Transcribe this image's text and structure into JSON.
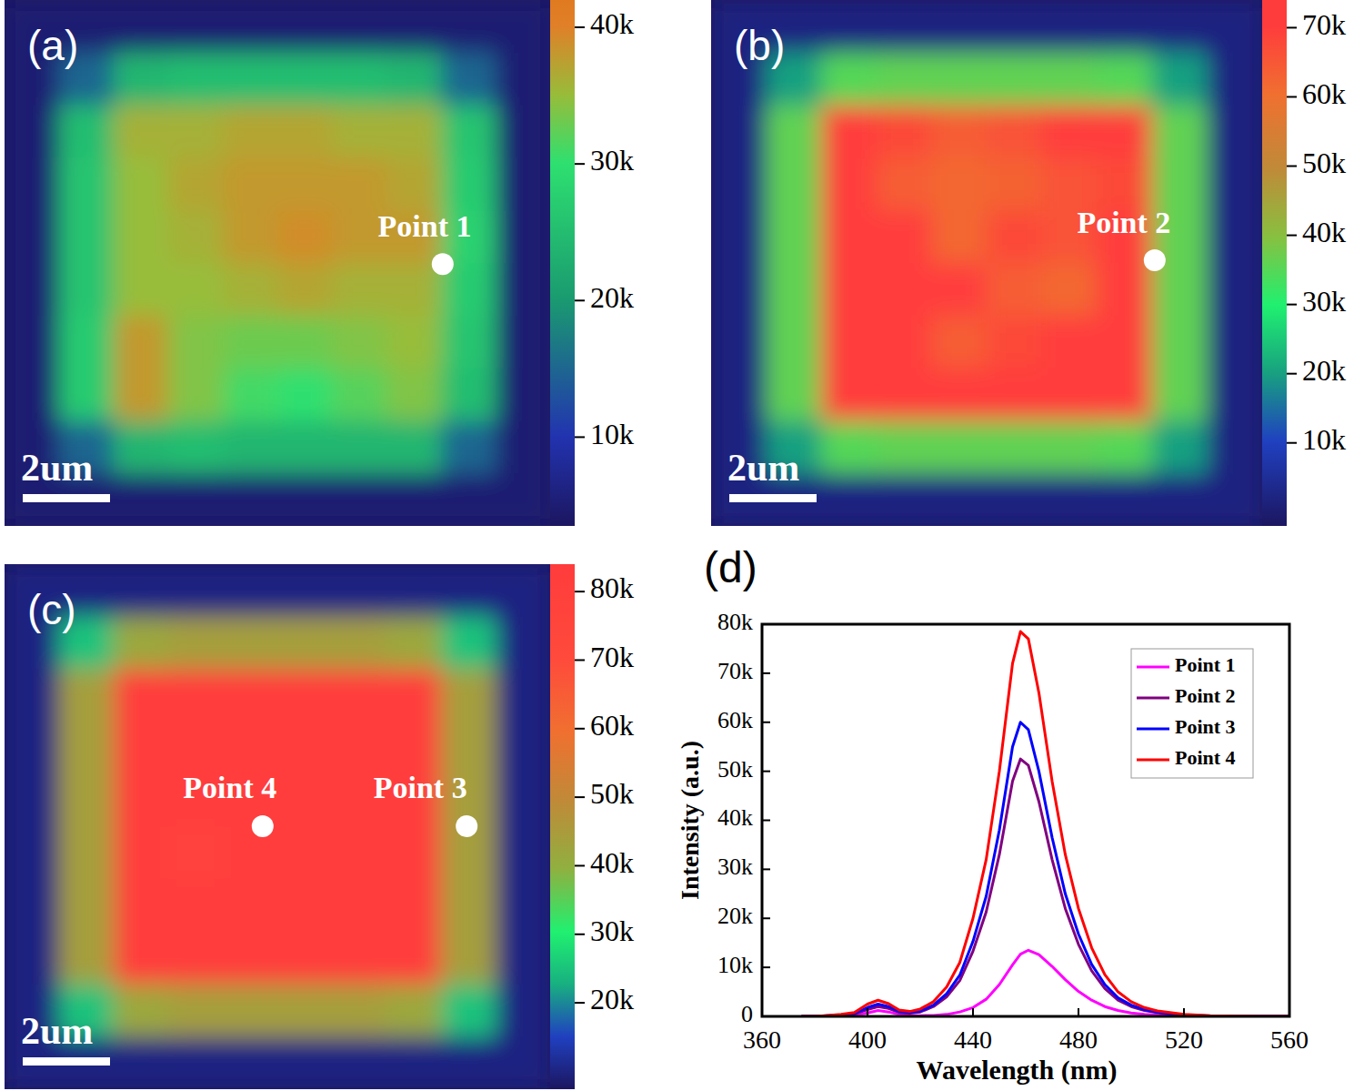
{
  "chart_data": [
    {
      "type": "heatmap",
      "label": "(a)",
      "scale_bar": "2um",
      "annotations": [
        "Point 1"
      ],
      "color_range": [
        3500,
        42000
      ],
      "color_ticks": [
        {
          "value": 10000,
          "label": "10k"
        },
        {
          "value": 20000,
          "label": "20k"
        },
        {
          "value": 30000,
          "label": "30k"
        },
        {
          "value": 40000,
          "label": "40k"
        }
      ],
      "cells": [
        [
          5000,
          5000,
          5000,
          5000,
          5000,
          5000,
          5000,
          5000,
          5000,
          5000
        ],
        [
          5000,
          15000,
          24000,
          25000,
          25000,
          25000,
          25000,
          24000,
          15000,
          5000
        ],
        [
          5000,
          25000,
          36000,
          36000,
          37000,
          37000,
          36000,
          36000,
          26000,
          5000
        ],
        [
          5000,
          26000,
          35000,
          37000,
          38000,
          38000,
          38000,
          37000,
          27000,
          5000
        ],
        [
          5000,
          26000,
          35000,
          36000,
          38000,
          39000,
          38000,
          38000,
          28000,
          5000
        ],
        [
          5000,
          26000,
          35000,
          35000,
          36000,
          37000,
          36000,
          36000,
          27000,
          5000
        ],
        [
          5000,
          27000,
          38000,
          34000,
          33000,
          33000,
          34000,
          35000,
          26000,
          5000
        ],
        [
          5000,
          27000,
          38000,
          34000,
          31000,
          30000,
          32000,
          34000,
          25000,
          5000
        ],
        [
          5000,
          15000,
          24000,
          25000,
          24000,
          24000,
          24000,
          24000,
          15000,
          5000
        ],
        [
          5000,
          5000,
          5000,
          5000,
          5000,
          5000,
          5000,
          5000,
          5000,
          5000
        ]
      ]
    },
    {
      "type": "heatmap",
      "label": "(b)",
      "scale_bar": "2um",
      "annotations": [
        "Point 2"
      ],
      "color_range": [
        -2000,
        74000
      ],
      "color_ticks": [
        {
          "value": 10000,
          "label": "10k"
        },
        {
          "value": 20000,
          "label": "20k"
        },
        {
          "value": 30000,
          "label": "30k"
        },
        {
          "value": 40000,
          "label": "40k"
        },
        {
          "value": 50000,
          "label": "50k"
        },
        {
          "value": 60000,
          "label": "60k"
        },
        {
          "value": 70000,
          "label": "70k"
        }
      ],
      "cells": [
        [
          2000,
          2000,
          2000,
          2000,
          2000,
          2000,
          2000,
          2000,
          2000,
          2000
        ],
        [
          2000,
          20000,
          35000,
          36000,
          36000,
          36000,
          36000,
          35000,
          20000,
          2000
        ],
        [
          2000,
          36000,
          72000,
          68000,
          64000,
          66000,
          70000,
          72000,
          36000,
          2000
        ],
        [
          2000,
          36000,
          72000,
          64000,
          62000,
          63000,
          66000,
          68000,
          36000,
          2000
        ],
        [
          2000,
          36000,
          72000,
          70000,
          62000,
          68000,
          66000,
          70000,
          36000,
          2000
        ],
        [
          2000,
          36000,
          72000,
          72000,
          70000,
          64000,
          62000,
          70000,
          36000,
          2000
        ],
        [
          2000,
          36000,
          72000,
          72000,
          64000,
          68000,
          70000,
          72000,
          36000,
          2000
        ],
        [
          2000,
          36000,
          72000,
          72000,
          70000,
          72000,
          72000,
          72000,
          36000,
          2000
        ],
        [
          2000,
          20000,
          35000,
          36000,
          36000,
          36000,
          36000,
          35000,
          20000,
          2000
        ],
        [
          2000,
          2000,
          2000,
          2000,
          2000,
          2000,
          2000,
          2000,
          2000,
          2000
        ]
      ]
    },
    {
      "type": "heatmap",
      "label": "(c)",
      "scale_bar": "2um",
      "annotations": [
        "Point 3",
        "Point 4"
      ],
      "color_range": [
        7400,
        84000
      ],
      "color_ticks": [
        {
          "value": 20000,
          "label": "20k"
        },
        {
          "value": 30000,
          "label": "30k"
        },
        {
          "value": 40000,
          "label": "40k"
        },
        {
          "value": 50000,
          "label": "50k"
        },
        {
          "value": 60000,
          "label": "60k"
        },
        {
          "value": 70000,
          "label": "70k"
        },
        {
          "value": 80000,
          "label": "80k"
        }
      ],
      "cells": [
        [
          10000,
          10000,
          10000,
          10000,
          10000,
          10000,
          10000,
          10000,
          10000,
          10000
        ],
        [
          10000,
          25000,
          42000,
          44000,
          44000,
          44000,
          44000,
          42000,
          25000,
          10000
        ],
        [
          10000,
          44000,
          82000,
          82000,
          82000,
          82000,
          82000,
          82000,
          44000,
          10000
        ],
        [
          10000,
          44000,
          82000,
          82000,
          82000,
          82000,
          82000,
          82000,
          44000,
          10000
        ],
        [
          10000,
          44000,
          82000,
          82000,
          82000,
          82000,
          82000,
          82000,
          44000,
          10000
        ],
        [
          10000,
          44000,
          82000,
          78000,
          82000,
          82000,
          82000,
          82000,
          44000,
          10000
        ],
        [
          10000,
          44000,
          82000,
          82000,
          82000,
          82000,
          82000,
          82000,
          44000,
          10000
        ],
        [
          10000,
          44000,
          82000,
          82000,
          82000,
          82000,
          82000,
          82000,
          44000,
          10000
        ],
        [
          10000,
          25000,
          42000,
          44000,
          44000,
          44000,
          44000,
          42000,
          25000,
          10000
        ],
        [
          10000,
          10000,
          10000,
          10000,
          10000,
          10000,
          10000,
          10000,
          10000,
          10000
        ]
      ]
    },
    {
      "type": "line",
      "label": "(d)",
      "x_label": "Wavelength (nm)",
      "y_label": "Intensity (a.u.)",
      "legend": "top-right",
      "xlim": [
        360,
        560
      ],
      "xticks": [
        360,
        400,
        440,
        480,
        520,
        560
      ],
      "ylim": [
        0,
        80000
      ],
      "yticks": [
        0,
        {
          "value": 10000,
          "label": "10k"
        },
        {
          "value": 20000,
          "label": "20k"
        },
        {
          "value": 30000,
          "label": "30k"
        },
        {
          "value": 40000,
          "label": "40k"
        },
        {
          "value": 50000,
          "label": "50k"
        },
        {
          "value": 60000,
          "label": "60k"
        },
        {
          "value": 70000,
          "label": "70k"
        },
        {
          "value": 80000,
          "label": "80k"
        }
      ],
      "x": [
        375,
        380,
        385,
        390,
        395,
        400,
        404,
        408,
        412,
        416,
        420,
        425,
        430,
        435,
        440,
        445,
        450,
        455,
        458,
        461,
        465,
        470,
        475,
        480,
        485,
        490,
        495,
        500,
        505,
        510,
        520,
        530,
        540,
        550,
        560
      ],
      "series": [
        {
          "name": "Point 1",
          "color": "#ff00ff",
          "values": [
            0,
            0,
            50,
            100,
            250,
            700,
            1200,
            900,
            400,
            200,
            150,
            200,
            400,
            900,
            1800,
            3500,
            6500,
            10500,
            12700,
            13500,
            12600,
            10200,
            7500,
            5100,
            3300,
            2000,
            1200,
            700,
            400,
            250,
            100,
            0,
            0,
            0,
            0
          ]
        },
        {
          "name": "Point 2",
          "color": "#800080",
          "values": [
            0,
            0,
            120,
            250,
            500,
            1400,
            2000,
            1600,
            800,
            650,
            900,
            2000,
            4000,
            7300,
            13300,
            21300,
            33000,
            48000,
            52500,
            51200,
            43800,
            32000,
            22000,
            14700,
            9300,
            5700,
            3300,
            2000,
            1200,
            750,
            250,
            80,
            0,
            0,
            0
          ]
        },
        {
          "name": "Point 3",
          "color": "#0000ff",
          "values": [
            0,
            0,
            150,
            300,
            600,
            1800,
            2500,
            2000,
            1000,
            800,
            1100,
            2300,
            4600,
            8400,
            15300,
            24500,
            38000,
            55000,
            60000,
            58500,
            50000,
            36500,
            25000,
            16800,
            10600,
            6500,
            3800,
            2300,
            1400,
            850,
            300,
            100,
            0,
            0,
            0
          ]
        },
        {
          "name": "Point 4",
          "color": "#ff0000",
          "values": [
            0,
            0,
            200,
            400,
            800,
            2500,
            3300,
            2600,
            1300,
            1000,
            1500,
            3000,
            6000,
            11000,
            20000,
            32000,
            50000,
            72000,
            78500,
            77000,
            66000,
            48000,
            33000,
            22000,
            14000,
            8500,
            5000,
            3000,
            1800,
            1100,
            400,
            150,
            50,
            0,
            0
          ]
        }
      ]
    }
  ]
}
